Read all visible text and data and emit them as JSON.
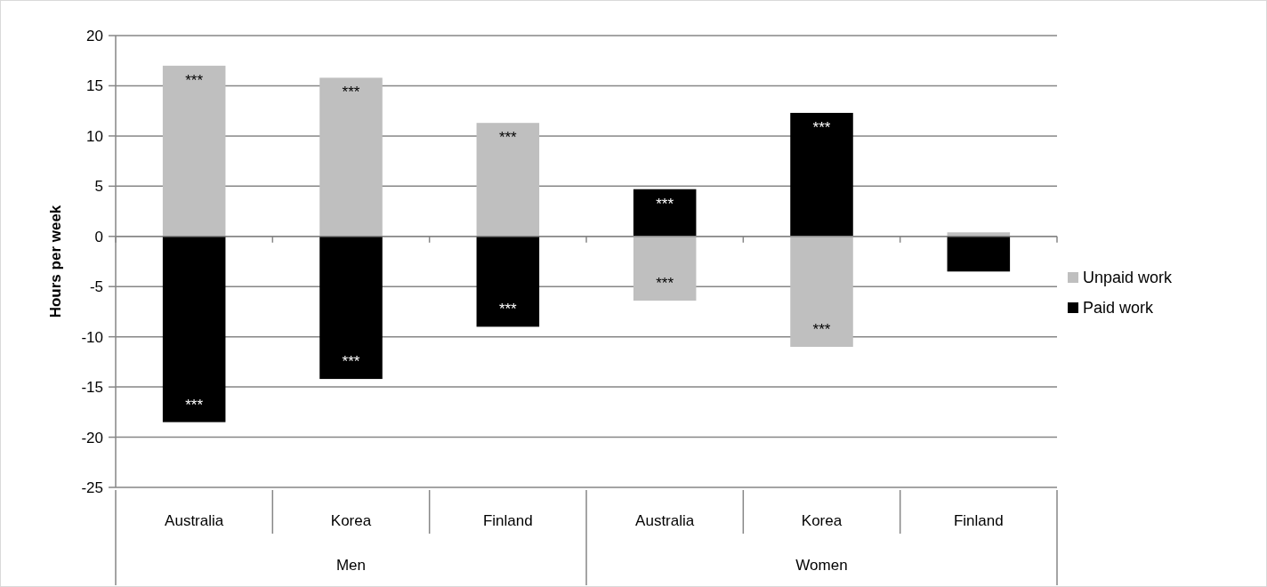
{
  "chart_data": {
    "type": "bar",
    "stacked": true,
    "ylabel": "Hours per week",
    "categories": [
      "Australia",
      "Korea",
      "Finland",
      "Australia",
      "Korea",
      "Finland"
    ],
    "annotations": [
      "Men",
      "Women"
    ],
    "ylim": [
      -25,
      20
    ],
    "yticks": [
      -25,
      -20,
      -15,
      -10,
      -5,
      0,
      5,
      10,
      15,
      20
    ],
    "grid": "y",
    "legend": "right",
    "series": [
      {
        "name": "Unpaid work",
        "color": "#bfbfbf",
        "values": [
          17.0,
          15.8,
          11.3,
          -6.4,
          -11.0,
          0.4
        ],
        "value_labels": [
          "***",
          "***",
          "***",
          "***",
          "***",
          null
        ]
      },
      {
        "name": "Paid work",
        "color": "#000000",
        "values": [
          -18.5,
          -14.2,
          -9.0,
          4.7,
          12.3,
          -3.5
        ],
        "value_labels": [
          "***",
          "***",
          "***",
          "***",
          "***",
          null
        ]
      }
    ]
  }
}
